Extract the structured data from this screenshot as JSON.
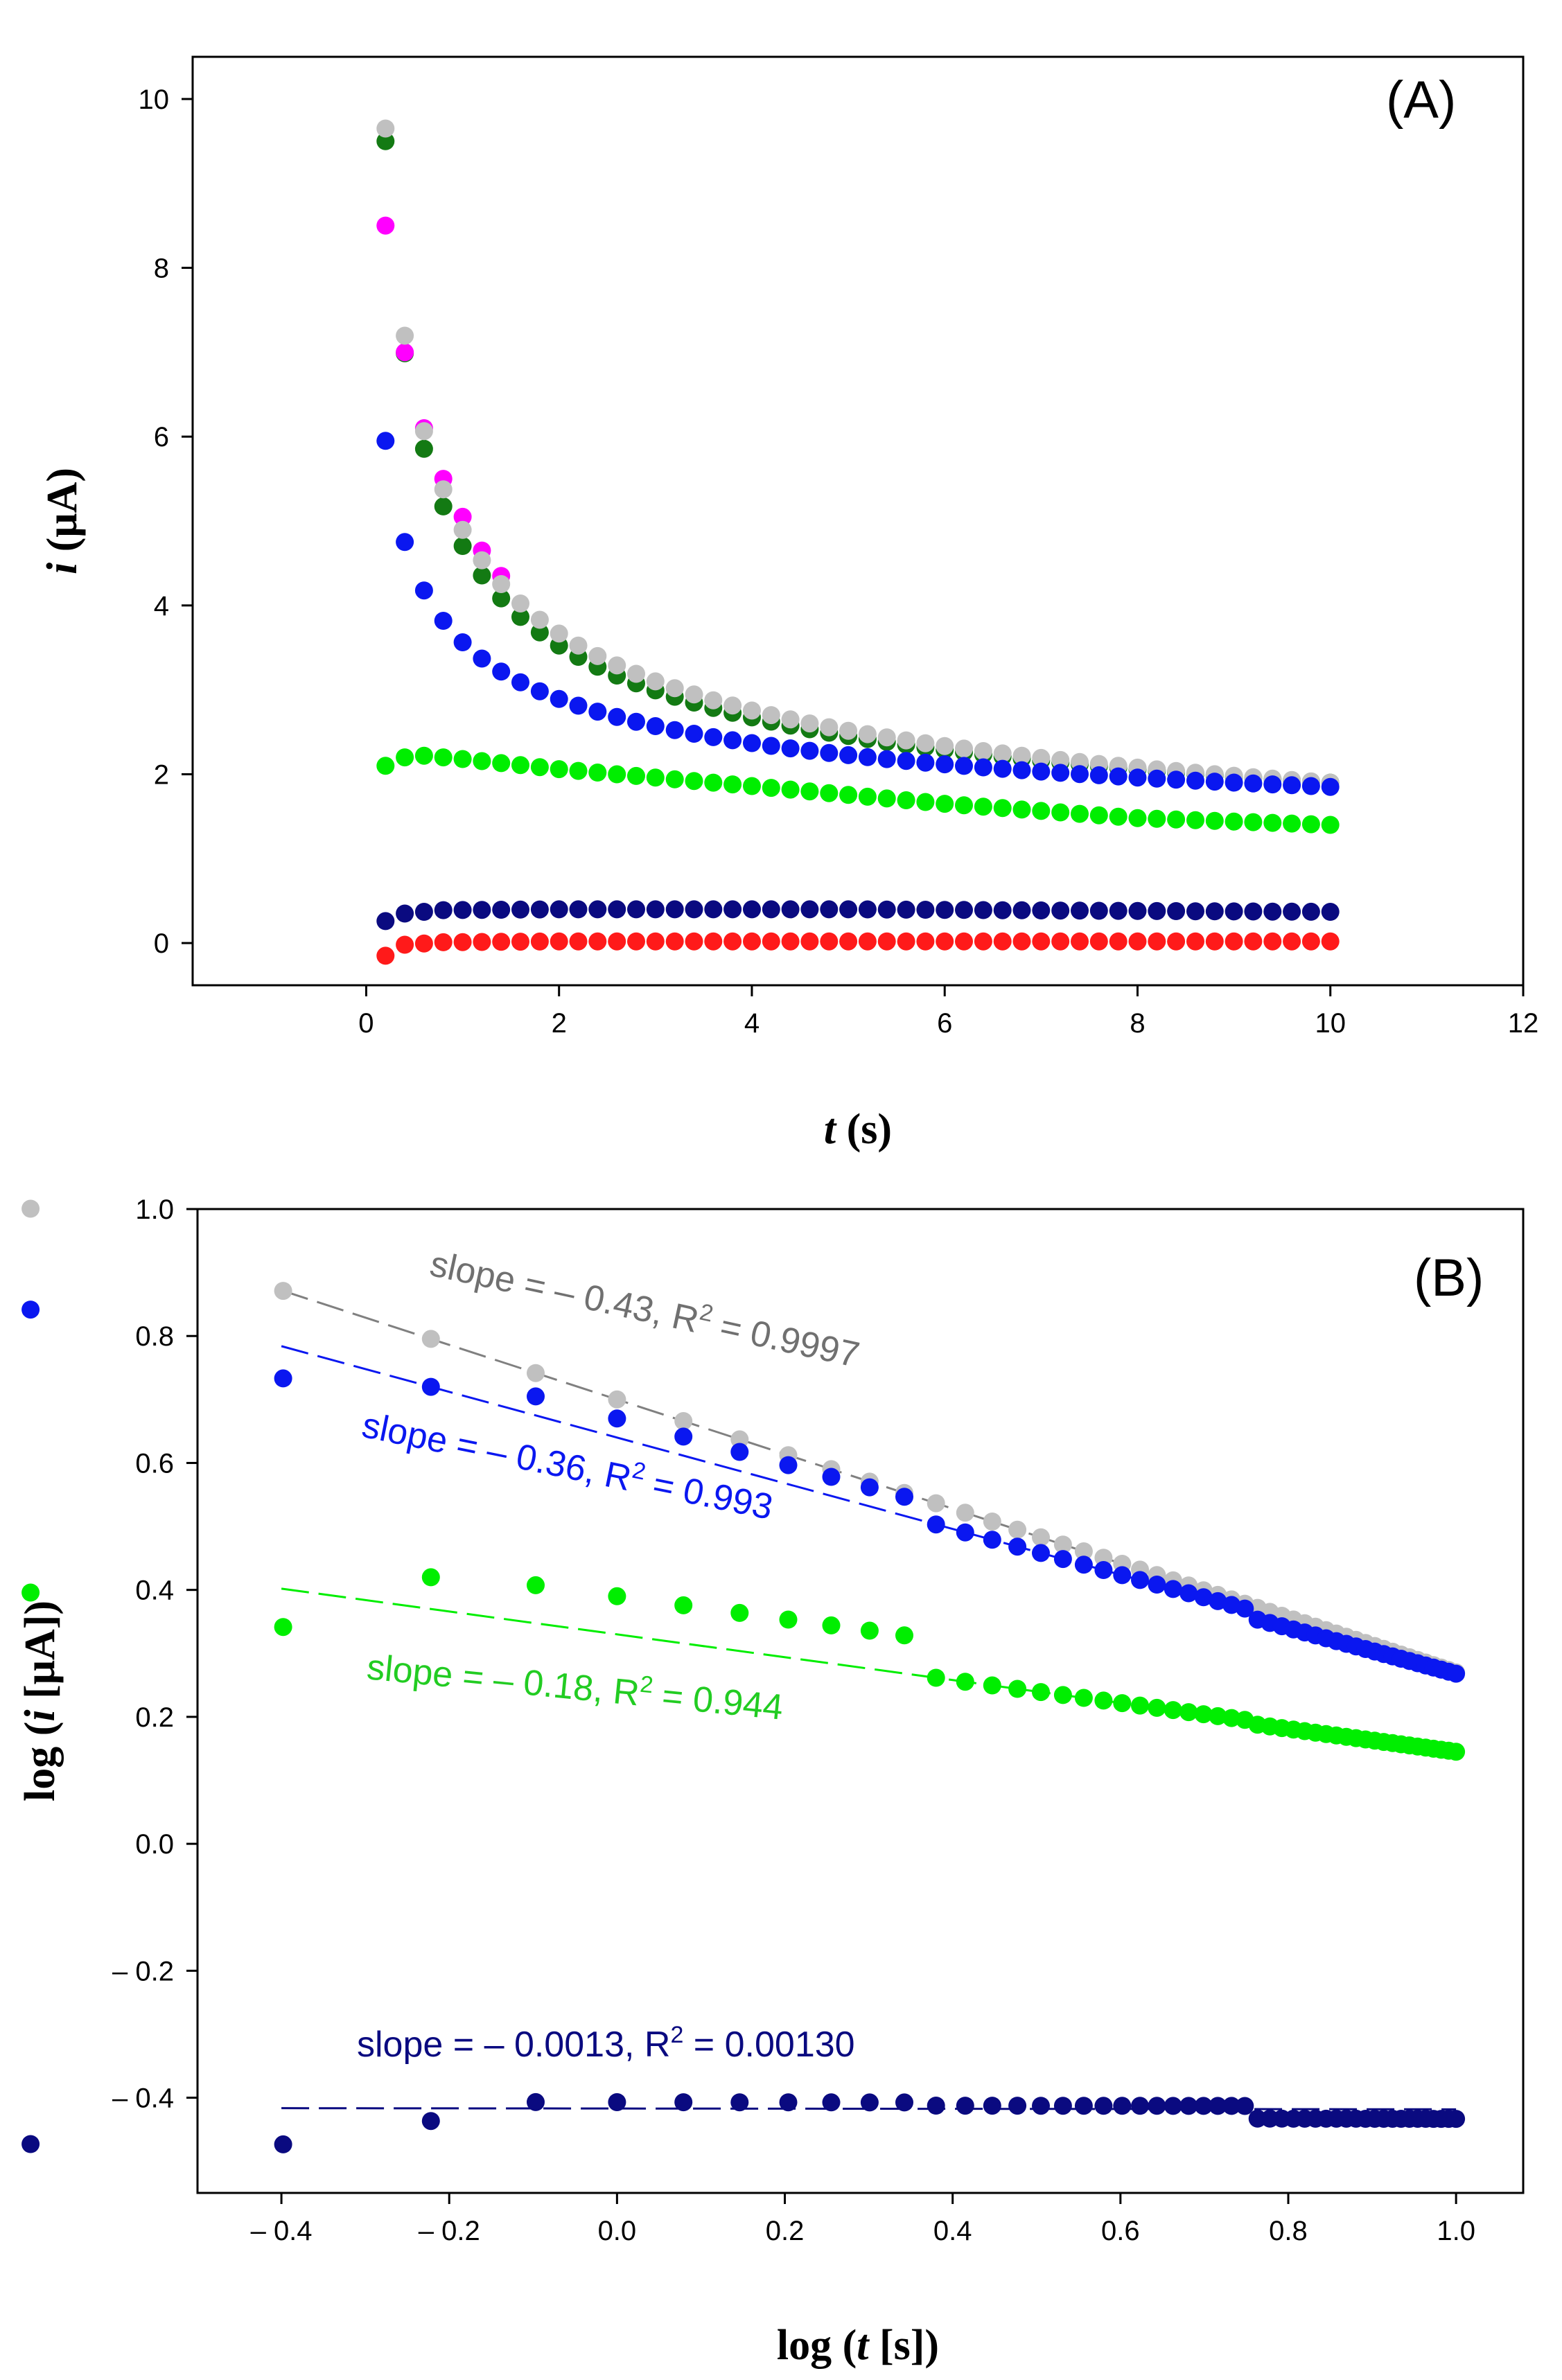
{
  "chart_data": [
    {
      "type": "scatter",
      "panel_label": "(A)",
      "xlabel": {
        "italic": "t",
        "rest": " (s)"
      },
      "ylabel": {
        "italic": "i",
        "rest": " (μA)"
      },
      "xlim": [
        -1.8,
        12
      ],
      "ylim": [
        -0.5,
        10.5
      ],
      "xticks": [
        "0",
        "2",
        "4",
        "6",
        "8",
        "10",
        "12"
      ],
      "yticks": [
        "0",
        "2",
        "4",
        "6",
        "8",
        "10"
      ],
      "series": [
        {
          "name": "dark green",
          "color": "#137a13",
          "kind": "decay",
          "values": {
            "i_at_0_2s": 9.5,
            "i_at_10s": 1.9,
            "shape": 0.47
          }
        },
        {
          "name": "magenta",
          "color": "#ff00ff",
          "kind": "decay_partial",
          "values": {
            "points": [
              [
                0.2,
                8.5
              ],
              [
                0.4,
                7.0
              ],
              [
                0.6,
                6.1
              ],
              [
                0.8,
                5.5
              ],
              [
                1.0,
                5.05
              ],
              [
                1.2,
                4.65
              ],
              [
                1.4,
                4.35
              ]
            ]
          }
        },
        {
          "name": "grey",
          "color": "#c0c0c0",
          "kind": "decay",
          "values": {
            "i_at_0_2s": 9.65,
            "i_at_10s": 1.9,
            "shape": 0.43
          }
        },
        {
          "name": "blue",
          "color": "#0a17f0",
          "kind": "decay",
          "values": {
            "i_at_0_2s": 5.95,
            "i_at_10s": 1.85,
            "shape": 0.36
          }
        },
        {
          "name": "green",
          "color": "#00ee00",
          "kind": "curve",
          "values": {
            "points": [
              [
                0.2,
                2.1
              ],
              [
                0.4,
                2.2
              ],
              [
                0.6,
                2.22
              ],
              [
                1.0,
                2.18
              ],
              [
                2.0,
                2.06
              ],
              [
                4.0,
                1.86
              ],
              [
                6.0,
                1.65
              ],
              [
                8.0,
                1.48
              ],
              [
                10.0,
                1.4
              ]
            ]
          }
        },
        {
          "name": "navy",
          "color": "#0a0a80",
          "kind": "curve",
          "values": {
            "points": [
              [
                0.2,
                0.26
              ],
              [
                0.4,
                0.35
              ],
              [
                0.8,
                0.39
              ],
              [
                2.0,
                0.4
              ],
              [
                5.0,
                0.4
              ],
              [
                8.0,
                0.38
              ],
              [
                10.0,
                0.37
              ]
            ]
          }
        },
        {
          "name": "red",
          "color": "#ff1a1a",
          "kind": "curve",
          "values": {
            "points": [
              [
                0.2,
                -0.15
              ],
              [
                0.4,
                -0.02
              ],
              [
                0.8,
                0.01
              ],
              [
                2.0,
                0.02
              ],
              [
                10.0,
                0.02
              ]
            ]
          }
        }
      ]
    },
    {
      "type": "scatter",
      "panel_label": "(B)",
      "xlabel": {
        "before": "log (",
        "italic": "t",
        "after": " [s])"
      },
      "ylabel": {
        "before": "log (",
        "italic": "i",
        "after": " [μA])"
      },
      "xlim": [
        -0.5,
        1.08
      ],
      "ylim": [
        -0.55,
        1.0
      ],
      "xticks": [
        "– 0.4",
        "– 0.2",
        "0.0",
        "0.2",
        "0.4",
        "0.6",
        "0.8",
        "1.0"
      ],
      "yticks": [
        "– 0.4",
        "– 0.2",
        "0.0",
        "0.2",
        "0.4",
        "0.6",
        "0.8",
        "1.0"
      ],
      "series": [
        {
          "name": "grey",
          "color": "#c0c0c0",
          "line_color": "#808080",
          "kind": "logfit",
          "fit": {
            "slope": -0.43,
            "intercept": 0.7
          },
          "values": {
            "offsets": [
              0.0,
              0.0,
              0.0,
              0.0,
              0.0
            ]
          }
        },
        {
          "name": "blue",
          "color": "#0a17f0",
          "line_color": "#0a17f0",
          "kind": "logfit",
          "fit": {
            "slope": -0.36,
            "intercept": 0.64
          },
          "values": {
            "offsets": [
              -0.05,
              0.0,
              0.03,
              0.0,
              -0.012
            ]
          }
        },
        {
          "name": "green",
          "color": "#00ee00",
          "line_color": "#00ee00",
          "kind": "logfit",
          "fit": {
            "slope": -0.18,
            "intercept": 0.33
          },
          "values": {
            "offsets": [
              -0.06,
              0.05,
              0.06,
              0.0,
              -0.005
            ]
          }
        },
        {
          "name": "navy",
          "color": "#0a0a80",
          "line_color": "#0a0a80",
          "kind": "logfit",
          "fit": {
            "slope": -0.0013,
            "intercept": -0.417
          },
          "values": {
            "offsets": [
              -0.057,
              -0.02,
              0.01,
              0.005,
              -0.015
            ]
          }
        }
      ],
      "annotations": [
        {
          "color": "#707070",
          "text": "slope = – 0.43, R",
          "sup": "2",
          "tail": " = 0.9997"
        },
        {
          "color": "#0a17f0",
          "text": "slope = – 0.36, R",
          "sup": "2",
          "tail": " = 0.993"
        },
        {
          "color": "#22cc22",
          "text": "slope = – 0.18, R",
          "sup": "2",
          "tail": " = 0.944"
        },
        {
          "color": "#0a0a80",
          "text": "slope = – 0.0013, R",
          "sup": "2",
          "tail": " = 0.00130"
        }
      ]
    }
  ]
}
